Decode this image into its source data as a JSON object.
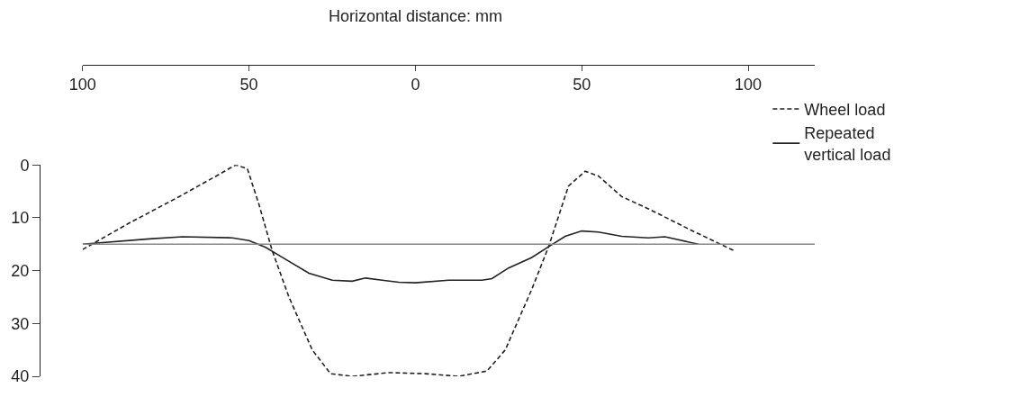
{
  "chart_data": {
    "type": "line",
    "xlabel": "Horizontal distance: mm",
    "xlim": [
      -100,
      120
    ],
    "xticks": [
      {
        "value": -100,
        "label": "100"
      },
      {
        "value": -50,
        "label": "50"
      },
      0,
      50,
      100
    ],
    "ylim": [
      40,
      0
    ],
    "yticks": [
      0,
      10,
      20,
      30,
      40
    ],
    "legend": "top right",
    "marker": "none",
    "series": [
      {
        "name": "Wheel load",
        "color": "#222222",
        "line_style": "dashed",
        "x": [
          -100,
          -86,
          -71,
          -59,
          -54,
          -50.5,
          -47,
          -43,
          -38,
          -31,
          -25.5,
          -19,
          -8,
          3,
          13,
          21.5,
          27,
          35,
          40,
          46,
          51,
          55,
          62,
          70,
          83,
          96
        ],
        "values": [
          16,
          11,
          6,
          1.8,
          0,
          0.7,
          7.5,
          16.3,
          25,
          35,
          39.5,
          40,
          39.3,
          39.5,
          40,
          39,
          35,
          23.5,
          15.5,
          4,
          1.2,
          2.1,
          6,
          8.3,
          12.4,
          16.3
        ]
      },
      {
        "name": "Repeated vertical load",
        "color": "#222222",
        "line_style": "solid",
        "x": [
          -100,
          -80,
          -70,
          -55,
          -50,
          -45,
          -40,
          -32,
          -25,
          -19,
          -15,
          -10,
          -5,
          0,
          10,
          20,
          23,
          28,
          35,
          40,
          45,
          50,
          55,
          62,
          70,
          75,
          85
        ],
        "values": [
          15,
          14,
          13.6,
          13.8,
          14.3,
          15.6,
          17.5,
          20.5,
          21.8,
          22,
          21.4,
          21.8,
          22.2,
          22.3,
          21.8,
          21.8,
          21.5,
          19.5,
          17.5,
          15.5,
          13.5,
          12.5,
          12.7,
          13.5,
          13.8,
          13.6,
          15
        ]
      },
      {
        "color": "#888888",
        "line_style": "solid",
        "x": [
          -100,
          120
        ],
        "values": [
          15,
          15
        ]
      }
    ]
  }
}
